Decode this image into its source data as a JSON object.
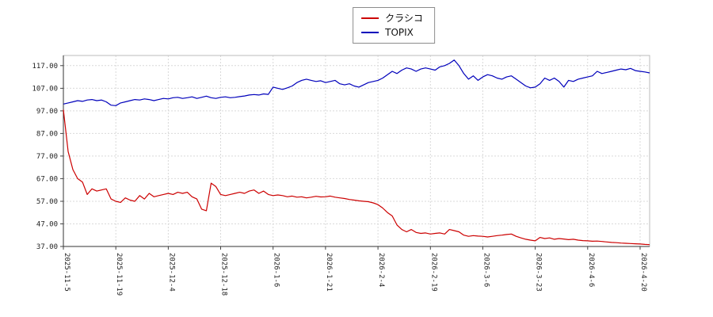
{
  "chart_data": {
    "type": "line",
    "title": "",
    "grid": true,
    "legend_position": "top-center",
    "n_points": 124,
    "x_axis": {
      "tick_labels": [
        "2025-11-5",
        "2025-11-19",
        "2025-12-4",
        "2025-12-18",
        "2026-1-6",
        "2026-1-21",
        "2026-2-4",
        "2026-2-19",
        "2026-3-6",
        "2026-3-23",
        "2026-4-6",
        "2026-4-20"
      ],
      "tick_indices": [
        0,
        11,
        22,
        33,
        44,
        55,
        66,
        77,
        88,
        99,
        110,
        121
      ]
    },
    "y_axis": {
      "ticks": [
        37,
        47,
        57,
        67,
        77,
        87,
        97,
        107,
        117
      ],
      "tick_labels": [
        "37.00",
        "47.00",
        "57.00",
        "67.00",
        "77.00",
        "87.00",
        "97.00",
        "107.00",
        "117.00"
      ],
      "lim": [
        37,
        121.5
      ]
    },
    "series": [
      {
        "name": "クラシコ",
        "color": "#cc0000",
        "values": [
          97.5,
          79,
          71,
          67,
          65.5,
          60,
          62.5,
          61.5,
          62,
          62.5,
          58,
          57,
          56.5,
          58.5,
          57.5,
          57,
          59.5,
          58,
          60.5,
          59,
          59.5,
          60,
          60.5,
          60,
          61,
          60.5,
          61,
          59,
          58,
          53.5,
          52.8,
          65,
          63.5,
          60,
          59.5,
          60,
          60.5,
          61,
          60.5,
          61.5,
          62,
          60.5,
          61.5,
          60,
          59.5,
          59.8,
          59.5,
          59,
          59.3,
          58.8,
          59,
          58.5,
          58.8,
          59.2,
          58.9,
          59,
          59.3,
          58.8,
          58.5,
          58.2,
          57.8,
          57.5,
          57.2,
          57,
          56.8,
          56.3,
          55.5,
          54,
          52,
          50.5,
          46.5,
          44.5,
          43.5,
          44.5,
          43.2,
          42.8,
          43,
          42.5,
          42.8,
          43,
          42.5,
          44.5,
          44,
          43.5,
          42,
          41.5,
          41.8,
          41.6,
          41.5,
          41.2,
          41.5,
          41.8,
          42,
          42.3,
          42.5,
          41.5,
          40.8,
          40.2,
          39.8,
          39.5,
          41,
          40.5,
          40.8,
          40.2,
          40.5,
          40.3,
          40,
          40.2,
          39.8,
          39.6,
          39.5,
          39.3,
          39.4,
          39.2,
          39,
          38.8,
          38.7,
          38.5,
          38.4,
          38.3,
          38.2,
          38.1,
          37.9,
          37.8
        ]
      },
      {
        "name": "TOPIX",
        "color": "#0000bb",
        "values": [
          100,
          100.5,
          101,
          101.5,
          101.2,
          101.8,
          102,
          101.5,
          101.8,
          101,
          99.5,
          99.3,
          100.5,
          101,
          101.5,
          102,
          101.8,
          102.3,
          102,
          101.5,
          102,
          102.5,
          102.3,
          102.8,
          103,
          102.5,
          102.8,
          103.2,
          102.5,
          103,
          103.5,
          102.8,
          102.5,
          103,
          103.2,
          102.8,
          103,
          103.3,
          103.6,
          104,
          104.2,
          104,
          104.5,
          104.3,
          107.5,
          107,
          106.5,
          107.2,
          108,
          109.5,
          110.5,
          111,
          110.5,
          110,
          110.3,
          109.5,
          110,
          110.5,
          109,
          108.5,
          109,
          108,
          107.5,
          108.5,
          109.5,
          110,
          110.5,
          111.5,
          113,
          114.5,
          113.5,
          115,
          116,
          115.5,
          114.5,
          115.5,
          116,
          115.5,
          115,
          116.5,
          117,
          118,
          119.5,
          117,
          113.5,
          111,
          112.5,
          110.5,
          112,
          113,
          112.5,
          111.5,
          111,
          112,
          112.5,
          111,
          109.5,
          108,
          107.2,
          107.5,
          109,
          111.5,
          110.5,
          111.5,
          110,
          107.5,
          110.5,
          110,
          111,
          111.5,
          112,
          112.5,
          114.5,
          113.5,
          114,
          114.5,
          115,
          115.5,
          115.2,
          115.8,
          114.8,
          114.5,
          114.2,
          113.8
        ]
      }
    ]
  }
}
